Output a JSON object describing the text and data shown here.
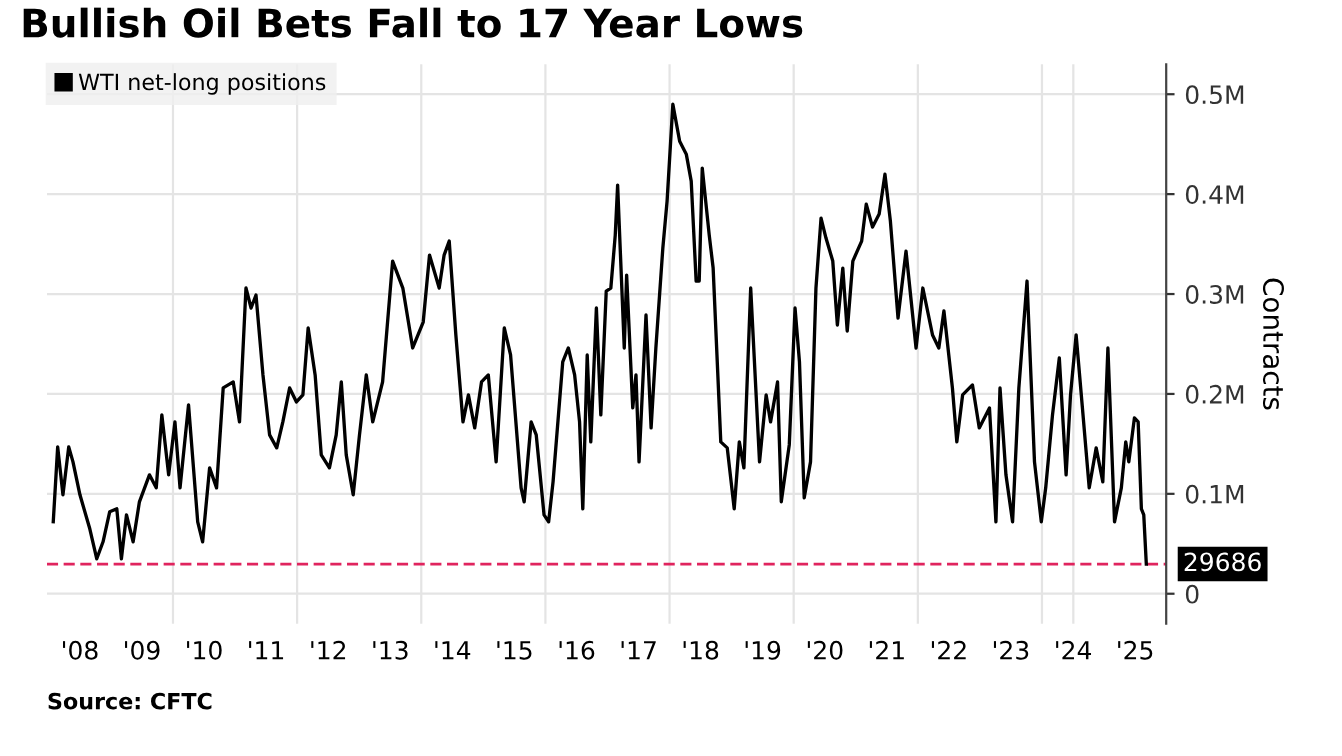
{
  "chart_data": {
    "type": "line",
    "title": "Bullish Oil Bets Fall to 17 Year Lows",
    "ylabel": "Contracts",
    "x": [
      "2008-01-26",
      "2008-02-21",
      "2008-03-23",
      "2008-04-26",
      "2008-05-21",
      "2008-07-01",
      "2008-08-28",
      "2008-10-08",
      "2008-11-14",
      "2008-12-23",
      "2009-02-03",
      "2009-03-02",
      "2009-04-01",
      "2009-05-10",
      "2009-06-16",
      "2009-08-14",
      "2009-09-23",
      "2009-10-26",
      "2009-12-05",
      "2010-01-11",
      "2010-02-10",
      "2010-04-01",
      "2010-05-25",
      "2010-06-23",
      "2010-08-03",
      "2010-09-13",
      "2010-10-22",
      "2010-12-20",
      "2011-01-26",
      "2011-03-05",
      "2011-04-04",
      "2011-05-03",
      "2011-06-13",
      "2011-07-22",
      "2011-09-02",
      "2011-10-08",
      "2011-11-17",
      "2011-12-27",
      "2012-02-03",
      "2012-03-05",
      "2012-04-15",
      "2012-05-21",
      "2012-07-08",
      "2012-08-17",
      "2012-09-16",
      "2012-10-15",
      "2012-11-25",
      "2013-01-01",
      "2013-02-10",
      "2013-03-20",
      "2013-05-17",
      "2013-07-15",
      "2013-09-13",
      "2013-11-10",
      "2014-01-11",
      "2014-02-17",
      "2014-04-15",
      "2014-05-14",
      "2014-06-13",
      "2014-07-22",
      "2014-09-02",
      "2014-10-04",
      "2014-11-10",
      "2014-12-20",
      "2015-01-29",
      "2015-03-16",
      "2015-05-03",
      "2015-06-09",
      "2015-08-10",
      "2015-08-28",
      "2015-10-08",
      "2015-11-07",
      "2015-12-23",
      "2016-01-19",
      "2016-02-14",
      "2016-04-11",
      "2016-05-14",
      "2016-06-20",
      "2016-07-19",
      "2016-08-07",
      "2016-09-02",
      "2016-09-23",
      "2016-10-26",
      "2016-11-21",
      "2016-12-23",
      "2017-01-19",
      "2017-02-14",
      "2017-02-28",
      "2017-04-08",
      "2017-04-22",
      "2017-05-28",
      "2017-06-16",
      "2017-07-04",
      "2017-08-14",
      "2017-09-13",
      "2017-10-11",
      "2017-11-21",
      "2017-12-16",
      "2018-01-19",
      "2018-02-28",
      "2018-04-08",
      "2018-05-07",
      "2018-06-05",
      "2018-06-23",
      "2018-07-11",
      "2018-08-21",
      "2018-09-13",
      "2018-10-28",
      "2018-12-05",
      "2019-01-15",
      "2019-02-14",
      "2019-03-13",
      "2019-04-22",
      "2019-06-13",
      "2019-07-22",
      "2019-08-17",
      "2019-09-27",
      "2019-10-19",
      "2019-12-05",
      "2020-01-08",
      "2020-02-03",
      "2020-03-02",
      "2020-04-08",
      "2020-05-10",
      "2020-06-09",
      "2020-07-08",
      "2020-08-17",
      "2020-09-13",
      "2020-10-15",
      "2020-11-10",
      "2020-12-13",
      "2021-02-03",
      "2021-03-02",
      "2021-04-08",
      "2021-05-17",
      "2021-06-20",
      "2021-07-22",
      "2021-09-05",
      "2021-10-22",
      "2021-12-20",
      "2022-01-29",
      "2022-03-27",
      "2022-05-03",
      "2022-06-02",
      "2022-07-22",
      "2022-08-17",
      "2022-09-20",
      "2022-11-17",
      "2022-12-27",
      "2023-02-25",
      "2023-04-04",
      "2023-04-28",
      "2023-06-02",
      "2023-07-11",
      "2023-08-17",
      "2023-10-04",
      "2023-11-17",
      "2023-12-27",
      "2024-01-22",
      "2024-03-02",
      "2024-04-11",
      "2024-05-21",
      "2024-06-16",
      "2024-07-19",
      "2024-08-25",
      "2024-10-04",
      "2024-11-14",
      "2024-12-23",
      "2025-01-22",
      "2025-03-02",
      "2025-04-11",
      "2025-05-07",
      "2025-05-25",
      "2025-06-27",
      "2025-07-19",
      "2025-08-07",
      "2025-08-21",
      "2025-09-05"
    ],
    "series": [
      {
        "name": "WTI net-long positions",
        "color": "#000000",
        "values": [
          72000,
          147000,
          99000,
          147000,
          132000,
          99000,
          65000,
          35000,
          52000,
          82000,
          85000,
          35000,
          79000,
          52000,
          92000,
          119000,
          106000,
          179000,
          119000,
          172000,
          106000,
          189000,
          72000,
          52000,
          126000,
          106000,
          206000,
          212000,
          172000,
          306000,
          286000,
          299000,
          219000,
          159000,
          146000,
          172000,
          206000,
          192000,
          199000,
          266000,
          219000,
          139000,
          126000,
          159000,
          212000,
          139000,
          99000,
          159000,
          219000,
          172000,
          212000,
          333000,
          306000,
          246000,
          272000,
          339000,
          306000,
          339000,
          353000,
          259000,
          172000,
          199000,
          166000,
          212000,
          219000,
          132000,
          266000,
          239000,
          106000,
          92000,
          172000,
          159000,
          79000,
          72000,
          112000,
          232000,
          246000,
          219000,
          172000,
          85000,
          239000,
          152000,
          286000,
          179000,
          303000,
          306000,
          359000,
          409000,
          246000,
          319000,
          186000,
          219000,
          132000,
          279000,
          166000,
          246000,
          346000,
          393000,
          490000,
          453000,
          440000,
          413000,
          313000,
          313000,
          426000,
          359000,
          326000,
          152000,
          146000,
          85000,
          152000,
          126000,
          306000,
          132000,
          199000,
          172000,
          212000,
          92000,
          149000,
          286000,
          232000,
          96000,
          132000,
          306000,
          376000,
          356000,
          333000,
          269000,
          326000,
          263000,
          333000,
          353000,
          390000,
          367000,
          380000,
          420000,
          373000,
          276000,
          343000,
          246000,
          306000,
          259000,
          246000,
          283000,
          206000,
          152000,
          199000,
          209000,
          166000,
          186000,
          72000,
          206000,
          119000,
          72000,
          206000,
          313000,
          132000,
          72000,
          106000,
          179000,
          236000,
          119000,
          199000,
          259000,
          186000,
          106000,
          146000,
          112000,
          246000,
          72000,
          106000,
          152000,
          132000,
          176000,
          172000,
          85000,
          79000,
          29686
        ]
      }
    ],
    "xlim": [
      "2007-12-20",
      "2025-12-31"
    ],
    "xticks": [
      {
        "value": "2008-07-01",
        "label": "'08"
      },
      {
        "value": "2009-07-01",
        "label": "'09"
      },
      {
        "value": "2010-07-01",
        "label": "'10"
      },
      {
        "value": "2011-07-01",
        "label": "'11"
      },
      {
        "value": "2012-07-01",
        "label": "'12"
      },
      {
        "value": "2013-07-01",
        "label": "'13"
      },
      {
        "value": "2014-07-01",
        "label": "'14"
      },
      {
        "value": "2015-07-01",
        "label": "'15"
      },
      {
        "value": "2016-07-01",
        "label": "'16"
      },
      {
        "value": "2017-07-01",
        "label": "'17"
      },
      {
        "value": "2018-07-01",
        "label": "'18"
      },
      {
        "value": "2019-07-01",
        "label": "'19"
      },
      {
        "value": "2020-07-01",
        "label": "'20"
      },
      {
        "value": "2021-07-01",
        "label": "'21"
      },
      {
        "value": "2022-07-01",
        "label": "'22"
      },
      {
        "value": "2023-07-01",
        "label": "'23"
      },
      {
        "value": "2024-07-01",
        "label": "'24"
      },
      {
        "value": "2025-07-01",
        "label": "'25"
      }
    ],
    "ylim": [
      -30000,
      530000
    ],
    "yticks": [
      0,
      {
        "value": 100000,
        "label": "0.1M"
      },
      {
        "value": 200000,
        "label": "0.2M"
      },
      {
        "value": 300000,
        "label": "0.3M"
      },
      {
        "value": 400000,
        "label": "0.4M"
      },
      {
        "value": 500000,
        "label": "0.5M"
      }
    ],
    "ref_lines": [
      {
        "axis": "y",
        "value": 29686,
        "label": "29686",
        "color": "#e0245e",
        "line_style": "dashed"
      }
    ],
    "annotations": [
      "Source: CFTC"
    ],
    "grid": true,
    "legend": "top left",
    "marker": "none",
    "line_style": "solid"
  }
}
